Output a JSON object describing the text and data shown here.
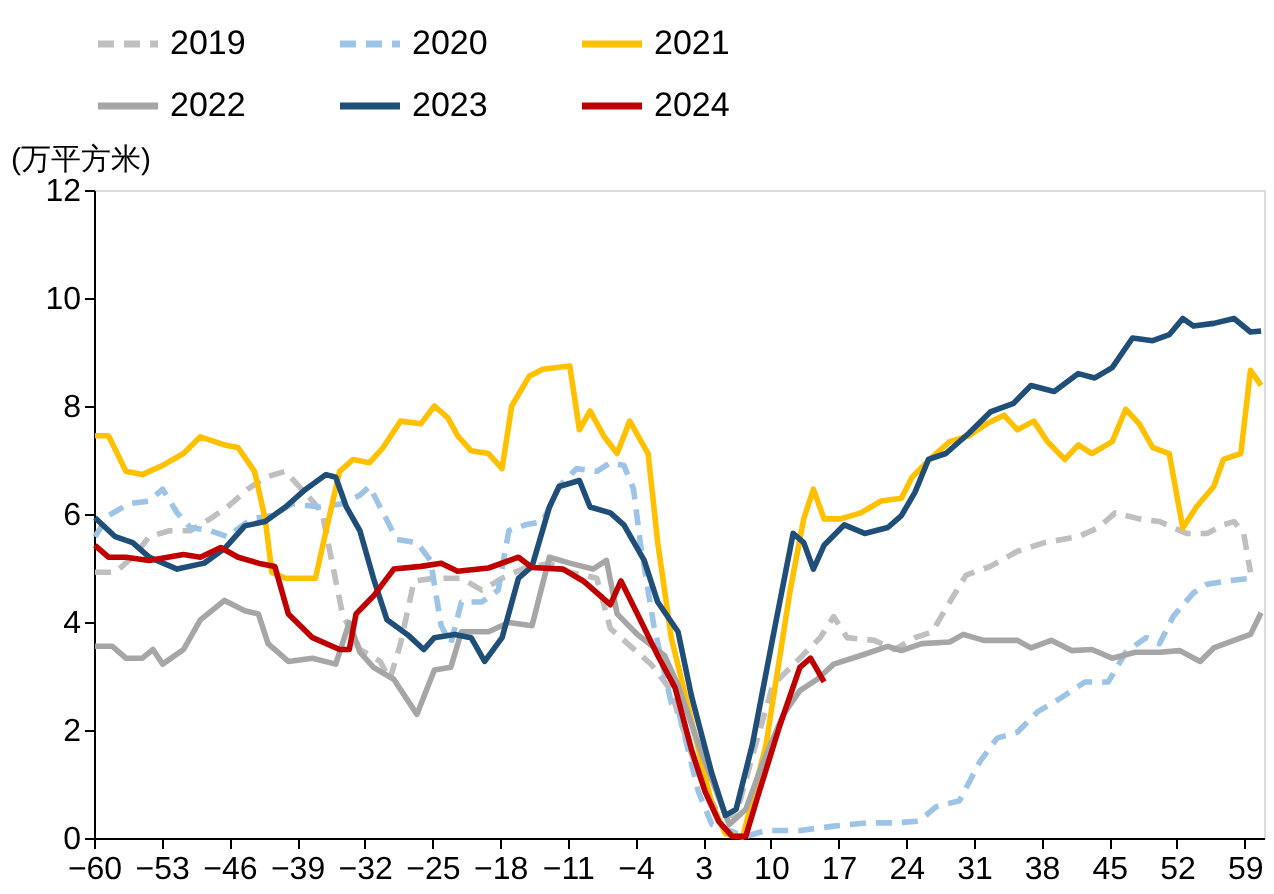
{
  "chart_data": {
    "type": "line",
    "ylabel": "(万平方米)",
    "xlim": [
      -60,
      61
    ],
    "xticks": [
      -60,
      -53,
      -46,
      -39,
      -32,
      -25,
      -18,
      -11,
      -4,
      3,
      10,
      17,
      24,
      31,
      38,
      45,
      52,
      59
    ],
    "ylim": [
      0,
      12
    ],
    "yticks": [
      0,
      2,
      4,
      6,
      8,
      10,
      12
    ],
    "grid": false,
    "legend": "top",
    "marker": "none",
    "series": [
      {
        "name": "2019",
        "color": "#bfbfbf",
        "line_style": "dashed",
        "x": [
          -59.9,
          -57.8,
          -55.7,
          -54.3,
          -52.2,
          -50.05,
          -48,
          -46.2,
          -44.1,
          -42.3,
          -40.2,
          -38.8,
          -37.4,
          -36.4,
          -35.3,
          -34.3,
          -32.5,
          -30.4,
          -29.4,
          -28.3,
          -26.9,
          -24.8,
          -22,
          -19.9,
          -17.8,
          -15.7,
          -12.9,
          -10.8,
          -8,
          -6.6,
          -4.5,
          -2.4,
          -0.3,
          0.4,
          2.5,
          4.6,
          6.4,
          8.1,
          10.2,
          13,
          15.1,
          16.5,
          17.9,
          20.7,
          22.8,
          24.9,
          26.7,
          28.5,
          30.2,
          32.7,
          35.5,
          38.3,
          41.8,
          43.9,
          45.6,
          48.1,
          50.2,
          53,
          55.1,
          56.8,
          57.9,
          58.9,
          59.6
        ],
        "values": [
          4.92,
          4.92,
          5.25,
          5.58,
          5.69,
          5.69,
          5.91,
          6.13,
          6.46,
          6.68,
          6.79,
          6.51,
          6.24,
          6.02,
          5.03,
          4.15,
          3.49,
          3.27,
          2.94,
          3.6,
          4.76,
          4.81,
          4.81,
          4.59,
          4.81,
          4.98,
          5.09,
          4.92,
          4.81,
          3.88,
          3.55,
          3.22,
          2.73,
          2.29,
          1.19,
          0.42,
          0.42,
          1.52,
          2.83,
          3.33,
          3.71,
          4.1,
          3.71,
          3.66,
          3.49,
          3.71,
          3.82,
          4.37,
          4.87,
          5.03,
          5.31,
          5.47,
          5.58,
          5.75,
          6.02,
          5.91,
          5.86,
          5.64,
          5.64,
          5.8,
          5.86,
          5.64,
          4.92
        ]
      },
      {
        "name": "2020",
        "color": "#9dc3e6",
        "line_style": "dashed",
        "x": [
          -59.9,
          -58.5,
          -56.4,
          -54.3,
          -52.9,
          -51.4,
          -50.05,
          -48,
          -46.2,
          -43.7,
          -41.6,
          -39.5,
          -36.7,
          -34.3,
          -32.5,
          -31.5,
          -30.1,
          -28.7,
          -26.6,
          -25.2,
          -24.1,
          -23.1,
          -22,
          -19.9,
          -18.2,
          -17.1,
          -15.4,
          -13.6,
          -11.9,
          -10.1,
          -8,
          -6.6,
          -5.2,
          -4.2,
          -3.5,
          -2.1,
          -0.3,
          0.4,
          2.5,
          3.9,
          7.4,
          9.5,
          13,
          16.5,
          20,
          22.8,
          25.3,
          27.1,
          29.5,
          31.6,
          33.4,
          35.5,
          37.6,
          39.7,
          42.5,
          44.9,
          46.7,
          48.8,
          50.2,
          51.6,
          53.7,
          55.1,
          57.2,
          59.6
        ],
        "values": [
          5.58,
          5.97,
          6.19,
          6.24,
          6.46,
          6.02,
          5.75,
          5.69,
          5.58,
          5.91,
          5.97,
          6.19,
          6.13,
          6.19,
          6.35,
          6.51,
          6.02,
          5.53,
          5.47,
          5.14,
          3.93,
          3.6,
          4.37,
          4.37,
          4.59,
          5.69,
          5.8,
          5.86,
          6.51,
          6.84,
          6.79,
          6.95,
          6.9,
          6.46,
          5.47,
          3.93,
          2.5,
          2.39,
          0.86,
          0.25,
          0.03,
          0.14,
          0.14,
          0.22,
          0.28,
          0.28,
          0.31,
          0.58,
          0.69,
          1.41,
          1.85,
          1.96,
          2.34,
          2.56,
          2.89,
          2.89,
          3.44,
          3.71,
          3.6,
          4.1,
          4.54,
          4.7,
          4.76,
          4.81
        ]
      },
      {
        "name": "2021",
        "color": "#ffc000",
        "line_style": "solid",
        "x": [
          -59.9,
          -58.5,
          -56.7,
          -55,
          -52.9,
          -50.75,
          -49,
          -46.5,
          -45.1,
          -43.4,
          -42.3,
          -41.6,
          -40.2,
          -37.1,
          -36,
          -34.6,
          -33.2,
          -31.5,
          -30.1,
          -28.3,
          -26.2,
          -24.8,
          -23.4,
          -22.4,
          -21,
          -19.2,
          -17.8,
          -16.8,
          -15,
          -13.6,
          -10.8,
          -9.8,
          -8.7,
          -7.3,
          -5.9,
          -4.6,
          -2.7,
          -1.7,
          -0.3,
          1.8,
          3.9,
          5.3,
          7.1,
          9.5,
          12,
          13.4,
          14.4,
          15.5,
          17.2,
          19.3,
          21.4,
          23.5,
          24.6,
          26.7,
          28.5,
          30.5,
          32.3,
          34.1,
          35.5,
          37.2,
          38.6,
          40.4,
          41.8,
          43.2,
          45.3,
          46.7,
          48.1,
          49.5,
          51.2,
          52.6,
          54,
          55.8,
          56.8,
          58.6,
          59.6,
          60.7
        ],
        "values": [
          7.45,
          7.45,
          6.79,
          6.73,
          6.9,
          7.12,
          7.43,
          7.28,
          7.23,
          6.79,
          5.91,
          4.92,
          4.81,
          4.81,
          5.69,
          6.79,
          7.01,
          6.95,
          7.23,
          7.72,
          7.67,
          8.0,
          7.78,
          7.45,
          7.17,
          7.12,
          6.84,
          8.0,
          8.55,
          8.68,
          8.74,
          7.56,
          7.91,
          7.45,
          7.12,
          7.72,
          7.12,
          5.47,
          3.71,
          2.17,
          0.63,
          0.08,
          0.02,
          1.73,
          4.59,
          5.91,
          6.46,
          5.91,
          5.91,
          6.02,
          6.24,
          6.29,
          6.68,
          7.06,
          7.34,
          7.45,
          7.67,
          7.83,
          7.56,
          7.72,
          7.34,
          7.01,
          7.28,
          7.12,
          7.34,
          7.94,
          7.67,
          7.23,
          7.12,
          5.74,
          6.13,
          6.51,
          7.01,
          7.12,
          8.66,
          8.38
        ]
      },
      {
        "name": "2022",
        "color": "#a6a6a6",
        "line_style": "solid",
        "x": [
          -59.9,
          -58.1,
          -56.7,
          -55,
          -53.9,
          -52.9,
          -50.75,
          -49,
          -46.5,
          -44.4,
          -43,
          -42,
          -39.9,
          -37.4,
          -35,
          -33.6,
          -32.5,
          -31.1,
          -29,
          -26.6,
          -24.8,
          -23.1,
          -22,
          -19.2,
          -17.1,
          -14.7,
          -12.9,
          -10.8,
          -8.4,
          -7,
          -5.9,
          -3.8,
          -1,
          0.4,
          2.5,
          4.6,
          5.7,
          7.4,
          9.2,
          11.3,
          13,
          14.8,
          16.5,
          19.3,
          22.1,
          23.5,
          25.6,
          28.5,
          29.9,
          32,
          35.5,
          36.9,
          39,
          41.1,
          43.2,
          45.3,
          47.7,
          50.2,
          52.3,
          54.4,
          55.8,
          57.9,
          59.6,
          60.7
        ],
        "values": [
          3.55,
          3.55,
          3.33,
          3.33,
          3.49,
          3.22,
          3.49,
          4.04,
          4.4,
          4.21,
          4.15,
          3.6,
          3.27,
          3.33,
          3.22,
          3.99,
          3.44,
          3.16,
          2.94,
          2.29,
          3.11,
          3.16,
          3.82,
          3.82,
          3.99,
          3.93,
          5.2,
          5.09,
          4.98,
          5.14,
          4.15,
          3.77,
          3.38,
          2.83,
          1.74,
          0.75,
          0.25,
          0.53,
          1.41,
          2.29,
          2.73,
          2.94,
          3.22,
          3.38,
          3.55,
          3.47,
          3.6,
          3.63,
          3.77,
          3.66,
          3.66,
          3.52,
          3.66,
          3.47,
          3.49,
          3.33,
          3.44,
          3.44,
          3.47,
          3.27,
          3.52,
          3.66,
          3.77,
          4.17
        ]
      },
      {
        "name": "2023",
        "color": "#1f4e79",
        "line_style": "solid",
        "x": [
          -59.9,
          -57.8,
          -56,
          -54.3,
          -51.4,
          -48.6,
          -46.5,
          -44.4,
          -42.3,
          -40.2,
          -38.1,
          -36,
          -35,
          -33.9,
          -32.5,
          -31.1,
          -29.7,
          -27.6,
          -25.9,
          -24.8,
          -22.7,
          -21,
          -19.6,
          -17.8,
          -16.1,
          -14.7,
          -12.9,
          -11.9,
          -9.8,
          -8.7,
          -6.6,
          -5.2,
          -3.1,
          -1.7,
          0.4,
          1.8,
          3.9,
          5.3,
          6.4,
          8.1,
          10.2,
          12.3,
          13.4,
          14.4,
          15.5,
          17.6,
          19.7,
          22.1,
          23.5,
          24.9,
          26.3,
          28.1,
          30.5,
          32.7,
          35.1,
          36.9,
          39.3,
          41.8,
          43.5,
          45.3,
          47.4,
          49.5,
          51.2,
          52.6,
          53.7,
          55.8,
          57.9,
          59.6,
          60.7
        ],
        "values": [
          5.93,
          5.58,
          5.47,
          5.2,
          4.98,
          5.09,
          5.36,
          5.78,
          5.86,
          6.13,
          6.46,
          6.73,
          6.68,
          6.13,
          5.69,
          4.81,
          4.04,
          3.77,
          3.49,
          3.71,
          3.77,
          3.71,
          3.27,
          3.71,
          4.81,
          5.03,
          6.13,
          6.51,
          6.62,
          6.13,
          6.02,
          5.8,
          5.14,
          4.37,
          3.82,
          2.62,
          1.19,
          0.42,
          0.53,
          1.74,
          3.71,
          5.64,
          5.47,
          4.98,
          5.42,
          5.8,
          5.64,
          5.75,
          5.97,
          6.4,
          7.01,
          7.12,
          7.5,
          7.89,
          8.05,
          8.38,
          8.27,
          8.6,
          8.52,
          8.71,
          9.26,
          9.21,
          9.32,
          9.62,
          9.48,
          9.53,
          9.62,
          9.37,
          9.39
        ]
      },
      {
        "name": "2024",
        "color": "#c00000",
        "line_style": "solid",
        "x": [
          -59.9,
          -58.5,
          -56.7,
          -54.3,
          -50.75,
          -49,
          -46.9,
          -45.1,
          -43,
          -41.3,
          -39.9,
          -37.4,
          -34.6,
          -33.6,
          -32.9,
          -31.1,
          -29,
          -26.2,
          -24.1,
          -22.4,
          -19.2,
          -16.1,
          -14.7,
          -11.5,
          -9.4,
          -6.6,
          -5.5,
          -3.8,
          -1.7,
          0.1,
          1.8,
          3.2,
          4.6,
          6,
          7.4,
          8.8,
          10.9,
          13,
          14.1,
          15.5
        ],
        "values": [
          5.42,
          5.2,
          5.2,
          5.14,
          5.25,
          5.2,
          5.38,
          5.2,
          5.09,
          5.03,
          4.15,
          3.71,
          3.49,
          3.49,
          4.15,
          4.48,
          4.98,
          5.03,
          5.09,
          4.94,
          5.0,
          5.2,
          5.01,
          4.98,
          4.76,
          4.32,
          4.76,
          4.15,
          3.38,
          2.78,
          1.63,
          0.86,
          0.31,
          0.03,
          0.03,
          0.86,
          2.07,
          3.16,
          3.33,
          2.89
        ]
      }
    ]
  }
}
